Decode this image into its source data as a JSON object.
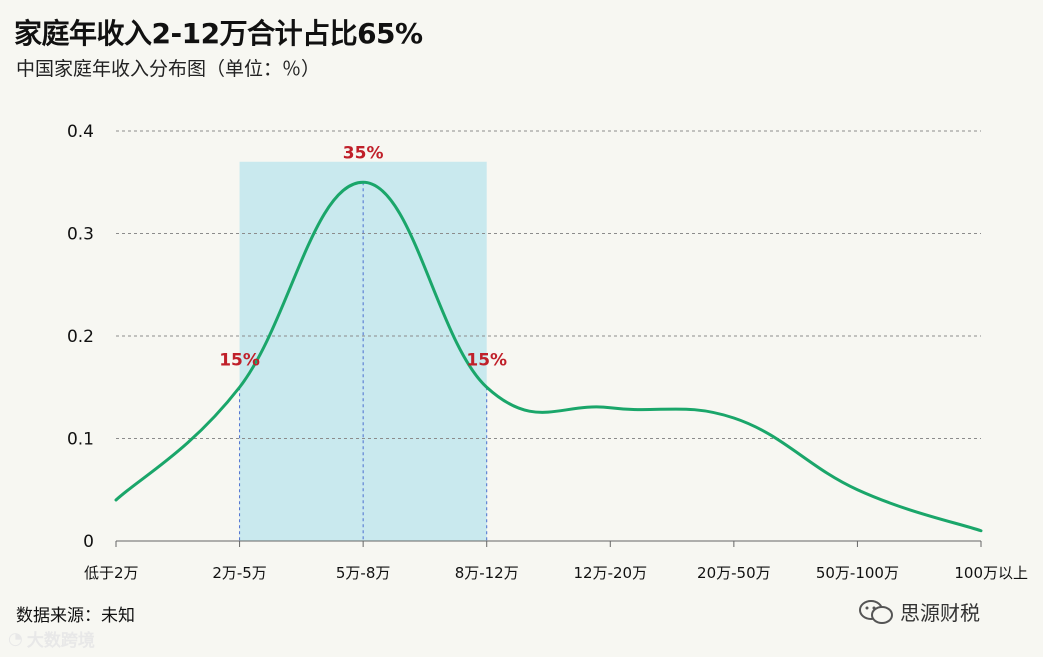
{
  "title": "家庭年收入2-12万合计占比65%",
  "subtitle": "中国家庭年收入分布图（单位：％）",
  "source": "数据来源：未知",
  "watermark_left": "大数跨境",
  "watermark_right": "思源财税",
  "colors": {
    "line": "#1aa66a",
    "highlight": "#c9e9ee",
    "annotation": "#c0202a",
    "grid": "#8c8c8c"
  },
  "chart_data": {
    "type": "line",
    "title": "家庭年收入2-12万合计占比65%",
    "subtitle": "中国家庭年收入分布图（单位：％）",
    "categories": [
      "低于2万",
      "2万-5万",
      "5万-8万",
      "8万-12万",
      "12万-20万",
      "20万-50万",
      "50万-100万",
      "100万以上"
    ],
    "series": [
      {
        "values": [
          0.04,
          0.15,
          0.35,
          0.15,
          0.13,
          0.12,
          0.05,
          0.01
        ]
      }
    ],
    "yticks": [
      "0",
      "0.1",
      "0.2",
      "0.3",
      "0.4"
    ],
    "ylim": [
      0,
      0.4
    ],
    "grid": true,
    "highlight_range": [
      "2万-5万",
      "8万-12万"
    ],
    "annotations": [
      {
        "category": "2万-5万",
        "text": "15%"
      },
      {
        "category": "5万-8万",
        "text": "35%"
      },
      {
        "category": "8万-12万",
        "text": "15%"
      }
    ]
  }
}
